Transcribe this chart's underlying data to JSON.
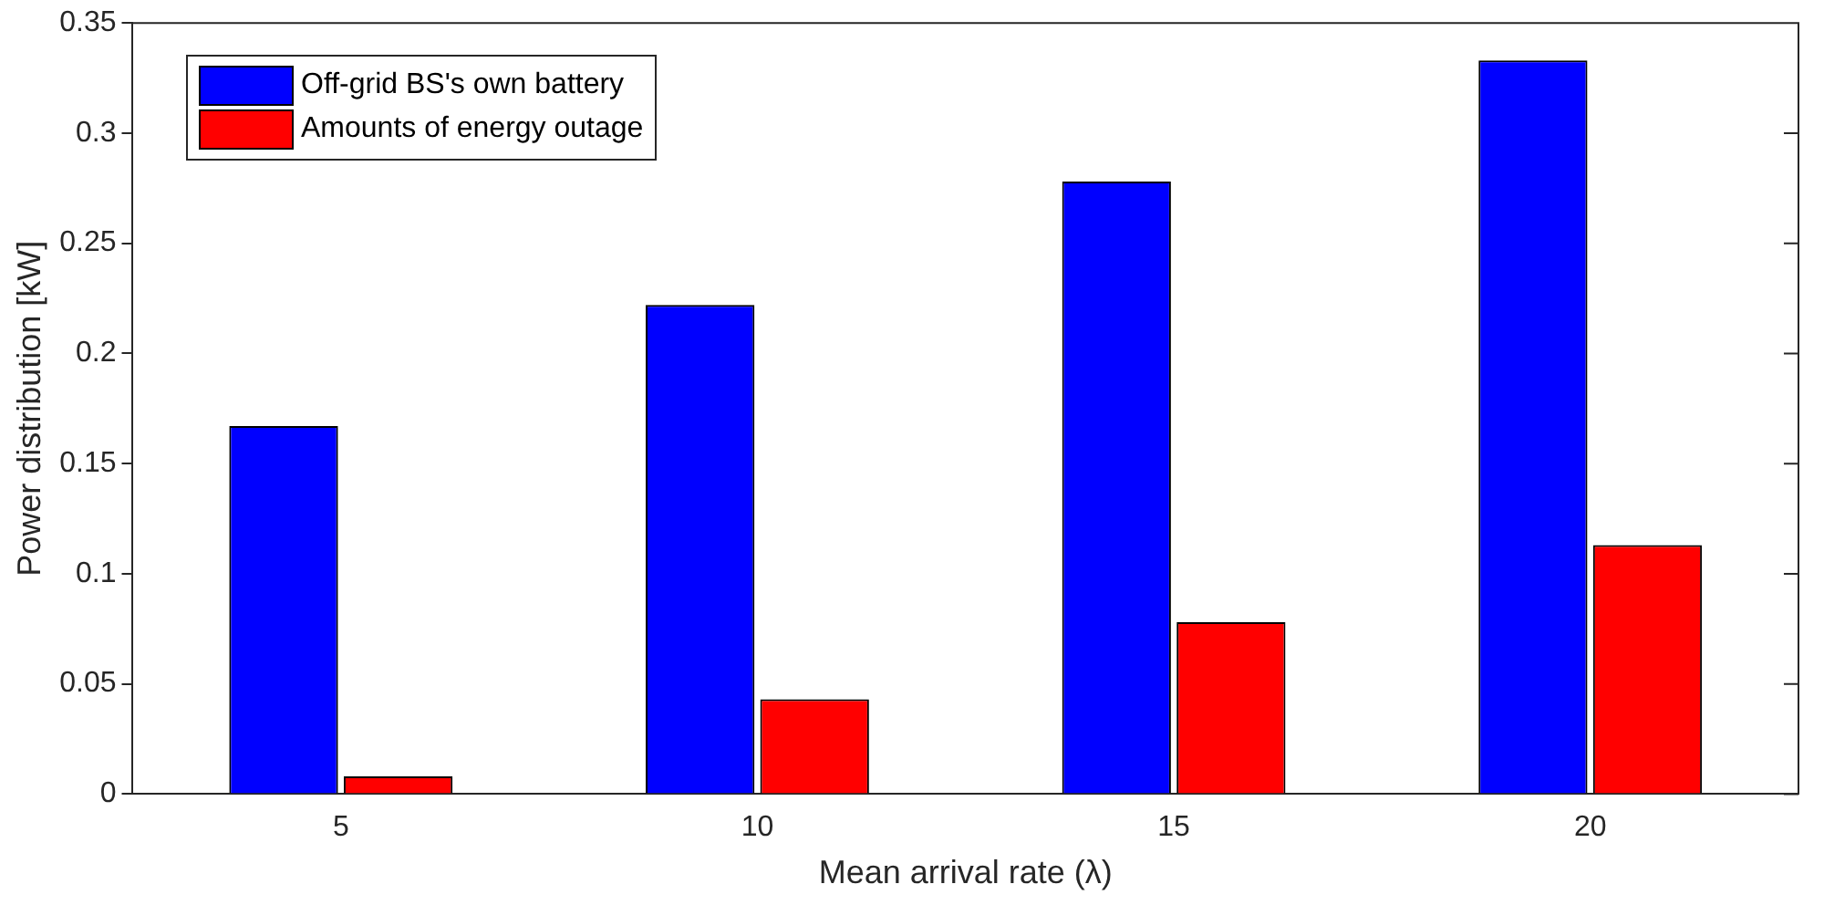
{
  "chart_data": {
    "type": "bar",
    "xlabel": "Mean arrival rate (λ)",
    "ylabel": "Power distribution [kW]",
    "categories": [
      "5",
      "10",
      "15",
      "20"
    ],
    "series": [
      {
        "name": "Off-grid BS's own battery",
        "color": "#0000ff",
        "values": [
          0.167,
          0.222,
          0.278,
          0.333
        ]
      },
      {
        "name": "Amounts of energy outage",
        "color": "#ff0000",
        "values": [
          0.008,
          0.043,
          0.078,
          0.113
        ]
      }
    ],
    "ylim": [
      0,
      0.35
    ],
    "yticks": [
      {
        "value": 0,
        "label": "0"
      },
      {
        "value": 0.05,
        "label": "0.05"
      },
      {
        "value": 0.1,
        "label": "0.1"
      },
      {
        "value": 0.15,
        "label": "0.15"
      },
      {
        "value": 0.2,
        "label": "0.2"
      },
      {
        "value": 0.25,
        "label": "0.25"
      },
      {
        "value": 0.3,
        "label": "0.3"
      },
      {
        "value": 0.35,
        "label": "0.35"
      }
    ],
    "grid": false,
    "legend": "top left"
  }
}
